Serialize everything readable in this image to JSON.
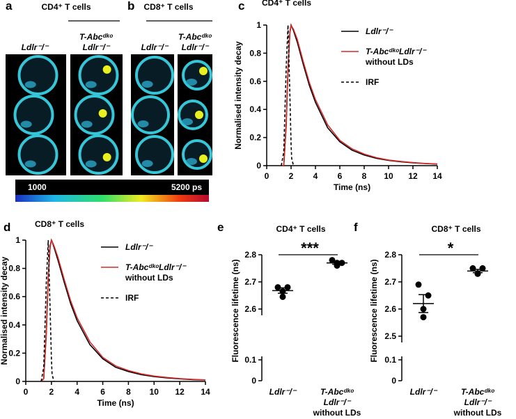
{
  "panels": {
    "a": {
      "label": "a",
      "title": "CD4⁺ T cells",
      "columns": [
        "Ldlr⁻/⁻",
        "T-Abcᵈᵏᵒ\nLdlr⁻/⁻"
      ]
    },
    "b": {
      "label": "b",
      "title": "CD8⁺ T cells",
      "columns": [
        "Ldlr⁻/⁻",
        "T-Abcᵈᵏᵒ\nLdlr⁻/⁻"
      ]
    },
    "colorbar": {
      "min_label": "1000",
      "max_label": "5200 ps"
    }
  },
  "chart_data": [
    {
      "type": "line",
      "panel_label": "c",
      "title": "CD4⁺ T cells",
      "xlabel": "Time (ns)",
      "ylabel": "Normalised intensity decay",
      "x": [
        1.2,
        1.4,
        1.6,
        1.75,
        1.9,
        2.0,
        2.05,
        2.2,
        2.5,
        3,
        3.5,
        4,
        5,
        6,
        7,
        8,
        9,
        10,
        11,
        12,
        13,
        14
      ],
      "series": [
        {
          "name": "Ldlr⁻/⁻",
          "color": "#000000",
          "linestyle": "solid",
          "values": [
            0,
            0,
            0.3,
            0.7,
            0.95,
            1,
            0.99,
            0.96,
            0.88,
            0.72,
            0.57,
            0.45,
            0.27,
            0.17,
            0.11,
            0.075,
            0.052,
            0.037,
            0.027,
            0.02,
            0.015,
            0.011
          ]
        },
        {
          "name": "T-AbcᵈᵏᵒLdlr⁻/⁻\nwithout LDs",
          "color": "#d42a2a",
          "linestyle": "solid",
          "values": [
            0,
            0,
            0.28,
            0.68,
            0.94,
            1,
            0.99,
            0.97,
            0.9,
            0.74,
            0.59,
            0.47,
            0.29,
            0.18,
            0.12,
            0.082,
            0.057,
            0.04,
            0.03,
            0.022,
            0.016,
            0.012
          ]
        },
        {
          "name": "IRF",
          "color": "#000000",
          "linestyle": "dashed",
          "values": [
            0,
            0.1,
            0.7,
            1,
            0.5,
            0.15,
            0.05,
            0,
            null,
            null,
            null,
            null,
            null,
            null,
            null,
            null,
            null,
            null,
            null,
            null,
            null,
            null
          ]
        }
      ],
      "xlim": [
        0,
        14
      ],
      "xticks": [
        0,
        2,
        4,
        6,
        8,
        10,
        12,
        14
      ],
      "ylim": [
        0,
        1
      ],
      "yticks": [
        0,
        0.2,
        0.4,
        0.6,
        0.8,
        1
      ]
    },
    {
      "type": "line",
      "panel_label": "d",
      "title": "CD8⁺ T cells",
      "xlabel": "Time (ns)",
      "ylabel": "Normalised intensity decay",
      "x": [
        1.2,
        1.4,
        1.6,
        1.75,
        1.9,
        2.0,
        2.05,
        2.2,
        2.5,
        3,
        3.5,
        4,
        5,
        6,
        7,
        8,
        9,
        10,
        11,
        12,
        13,
        14
      ],
      "series": [
        {
          "name": "Ldlr⁻/⁻",
          "color": "#000000",
          "linestyle": "solid",
          "values": [
            0,
            0.02,
            0.35,
            0.75,
            0.96,
            1,
            0.99,
            0.95,
            0.86,
            0.7,
            0.55,
            0.43,
            0.26,
            0.16,
            0.1,
            0.07,
            0.048,
            0.034,
            0.025,
            0.018,
            0.013,
            0.01
          ]
        },
        {
          "name": "T-AbcᵈᵏᵒLdlr⁻/⁻\nwithout LDs",
          "color": "#d42a2a",
          "linestyle": "solid",
          "values": [
            0,
            0.02,
            0.33,
            0.73,
            0.95,
            1,
            0.99,
            0.96,
            0.88,
            0.72,
            0.57,
            0.45,
            0.28,
            0.17,
            0.11,
            0.077,
            0.053,
            0.038,
            0.028,
            0.02,
            0.015,
            0.011
          ]
        },
        {
          "name": "IRF",
          "color": "#000000",
          "linestyle": "dashed",
          "values": [
            0,
            0.1,
            0.7,
            1,
            0.5,
            0.15,
            0.05,
            0,
            null,
            null,
            null,
            null,
            null,
            null,
            null,
            null,
            null,
            null,
            null,
            null,
            null,
            null
          ]
        }
      ],
      "xlim": [
        0,
        14
      ],
      "xticks": [
        0,
        2,
        4,
        6,
        8,
        10,
        12,
        14
      ],
      "ylim": [
        0,
        1
      ],
      "yticks": [
        0,
        0.2,
        0.4,
        0.6,
        0.8,
        1
      ]
    },
    {
      "type": "dot",
      "panel_label": "e",
      "title": "CD4⁺ T cells",
      "ylabel": "Fluorescence lifetime (ns)",
      "significance": "***",
      "categories": [
        "Ldlr⁻/⁻",
        "T-Abcᵈᵏᵒ\nLdlr⁻/⁻\nwithout LDs"
      ],
      "color": "#000000",
      "points": [
        [
          2.68,
          2.68,
          2.665,
          2.645
        ],
        [
          2.78,
          2.77,
          2.77,
          2.76
        ]
      ],
      "mean": [
        2.668,
        2.77
      ],
      "error": [
        0.01,
        0.005
      ],
      "ylim": [
        0,
        2.8
      ],
      "y_break": [
        0.1,
        2.6
      ],
      "yticks": [
        0,
        0.1,
        2.6,
        2.7,
        2.8
      ]
    },
    {
      "type": "dot",
      "panel_label": "f",
      "title": "CD8⁺ T cells",
      "ylabel": "Fluorescence lifetime (ns)",
      "significance": "*",
      "categories": [
        "Ldlr⁻/⁻",
        "T-Abcᵈᵏᵒ\nLdlr⁻/⁻\nwithout LDs"
      ],
      "color": "#000000",
      "points": [
        [
          2.69,
          2.65,
          2.6,
          2.57
        ],
        [
          2.75,
          2.75,
          2.73,
          2.73
        ]
      ],
      "mean": [
        2.62,
        2.74
      ],
      "error": [
        0.033,
        0.006
      ],
      "ylim": [
        0,
        2.8
      ],
      "y_break": [
        0.1,
        2.5
      ],
      "yticks": [
        0,
        0.1,
        2.5,
        2.6,
        2.7,
        2.8
      ]
    }
  ]
}
